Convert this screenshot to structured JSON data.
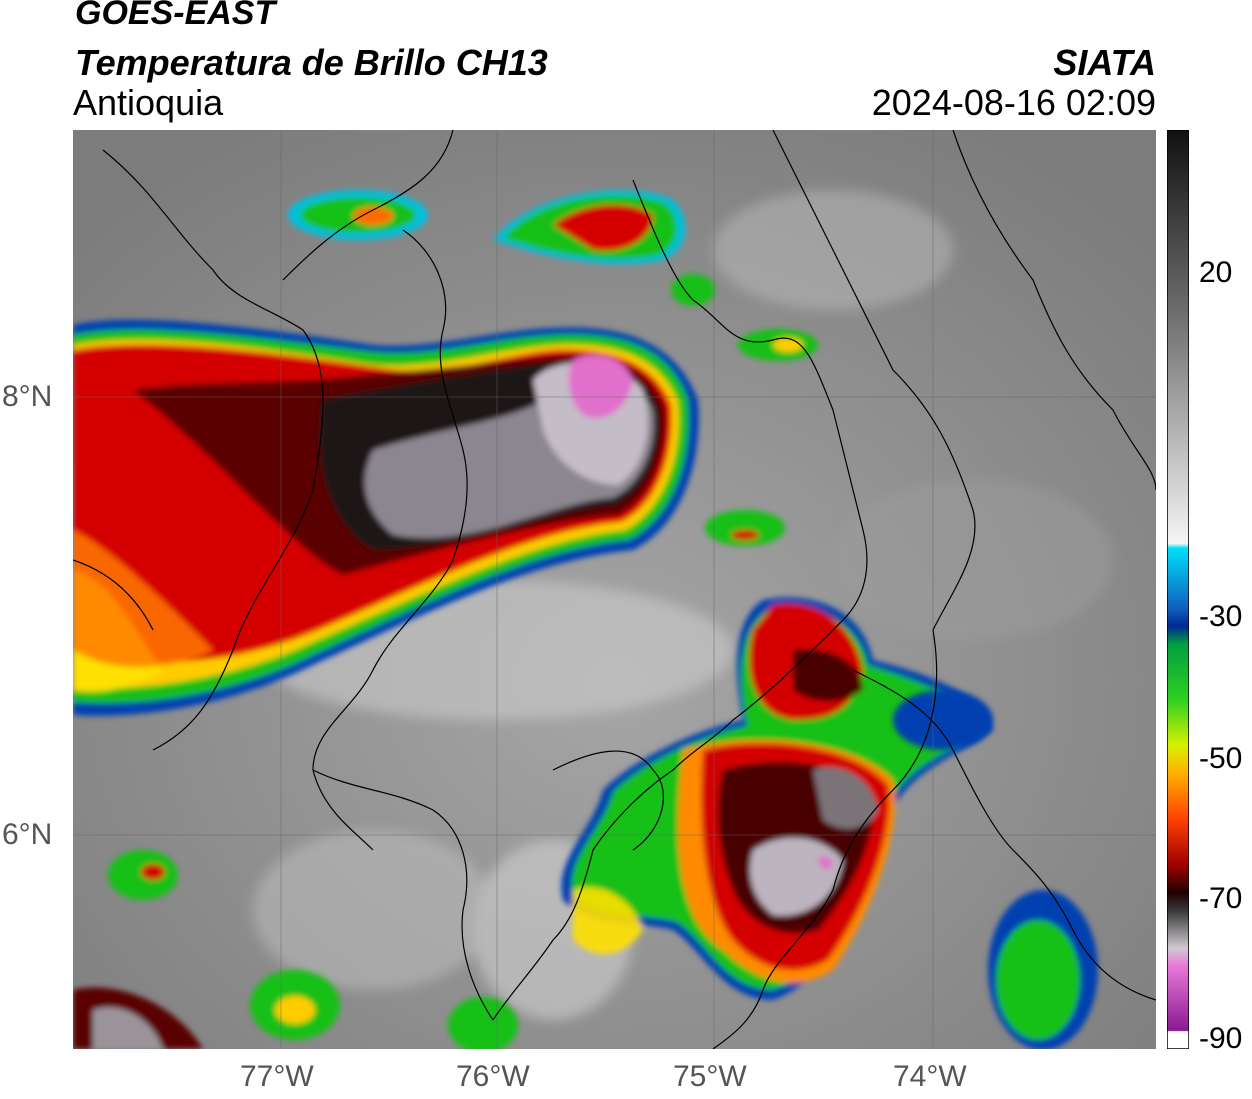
{
  "header": {
    "source": "GOES-EAST",
    "product": "Temperatura de Brillo CH13",
    "region": "Antioquia",
    "organization": "SIATA",
    "datetime": "2024-08-16 02:09"
  },
  "map": {
    "lon_ticks": [
      "77°W",
      "76°W",
      "75°W",
      "74°W"
    ],
    "lat_ticks": [
      "8°N",
      "6°N"
    ],
    "colorbar_ticks": [
      "20",
      "-30",
      "-50",
      "-70",
      "-90"
    ],
    "colors": {
      "background_gray": "#8a8a8a",
      "warm_red": "#d40000",
      "dark_core": "#1a0000",
      "orange": "#ff6a00",
      "yellow": "#ffe000",
      "green": "#10c010",
      "blue": "#0030a0",
      "cyan": "#00d0f0",
      "magenta": "#e060c8",
      "light_gray": "#c8c0c8"
    }
  }
}
